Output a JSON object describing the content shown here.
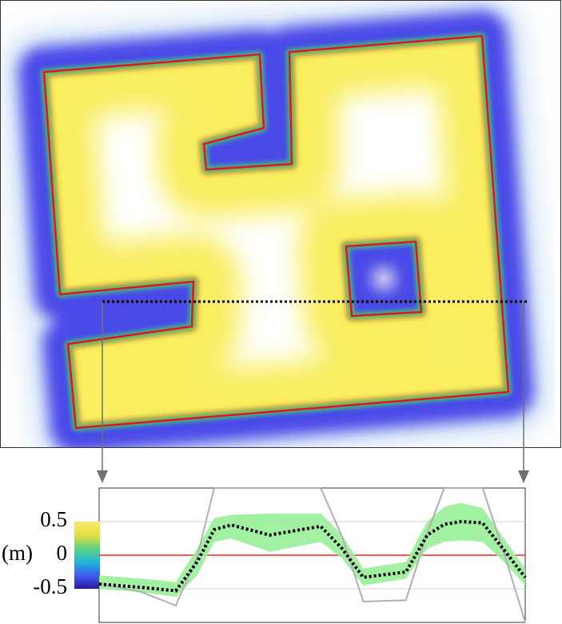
{
  "chart_data": {
    "type": "line",
    "ylabel": "(m)",
    "x": [
      0,
      10,
      18,
      23,
      27,
      31,
      40,
      52,
      57,
      62,
      72,
      77,
      81,
      85,
      90,
      95,
      100
    ],
    "xlim": [
      0,
      100
    ],
    "ylim": [
      -1,
      1
    ],
    "yticks": [
      -0.5,
      0,
      0.5
    ],
    "grid": true,
    "zero_line_color": "#ff2020",
    "colormap": [
      "#2a1a9e",
      "#3f5cf0",
      "#20b8d8",
      "#60d080",
      "#e8e040",
      "#f8e870"
    ],
    "series": [
      {
        "color": "#b0b0b0",
        "style": "solid",
        "values": [
          -0.42,
          -0.55,
          -0.75,
          -0.03,
          1.0,
          1.0,
          1.0,
          1.0,
          0.28,
          -0.69,
          -0.67,
          0.33,
          1.0,
          1.0,
          1.0,
          0.04,
          -1.0
        ]
      },
      {
        "color": "#000000",
        "style": "dotted",
        "values": [
          -0.43,
          -0.48,
          -0.53,
          -0.1,
          0.38,
          0.45,
          0.3,
          0.43,
          0.1,
          -0.33,
          -0.25,
          0.3,
          0.46,
          0.5,
          0.48,
          0.08,
          -0.33
        ],
        "upper": [
          -0.3,
          -0.35,
          -0.4,
          0.1,
          0.55,
          0.6,
          0.62,
          0.62,
          0.3,
          -0.2,
          -0.1,
          0.5,
          0.72,
          0.78,
          0.7,
          0.25,
          -0.2
        ],
        "lower": [
          -0.5,
          -0.55,
          -0.62,
          -0.3,
          0.2,
          0.25,
          0.05,
          0.2,
          -0.05,
          -0.45,
          -0.35,
          0.1,
          0.2,
          0.22,
          0.2,
          -0.1,
          -0.45
        ],
        "band_color": "#98ee98"
      }
    ]
  }
}
